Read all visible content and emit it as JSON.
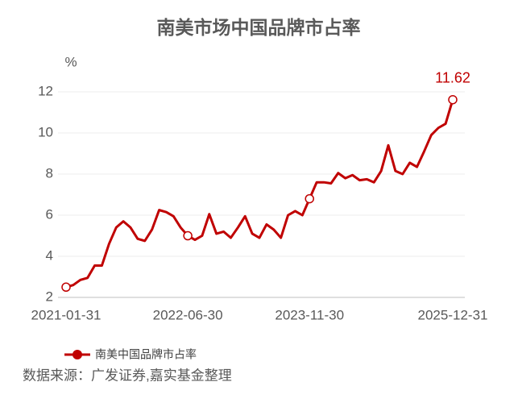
{
  "chart_data": {
    "type": "line",
    "title": "南美市场中国品牌市占率",
    "ylabel": "%",
    "source": "数据来源：广发证券,嘉实基金整理",
    "categories": [
      "2021-01-31",
      null,
      null,
      null,
      null,
      null,
      null,
      null,
      null,
      null,
      null,
      null,
      null,
      null,
      null,
      null,
      null,
      "2022-06-30",
      null,
      null,
      null,
      null,
      null,
      null,
      null,
      null,
      null,
      null,
      null,
      null,
      null,
      null,
      null,
      null,
      "2023-11-30",
      null,
      null,
      null,
      null,
      null,
      null,
      null,
      null,
      null,
      null,
      null,
      null,
      null,
      null,
      null,
      null,
      null,
      null,
      null,
      "2025-12-31"
    ],
    "series": [
      {
        "name": "南美中国品牌市占率",
        "color": "#c00000",
        "values": [
          2.5,
          2.6,
          2.85,
          2.95,
          3.55,
          3.55,
          4.6,
          5.4,
          5.7,
          5.4,
          4.85,
          4.75,
          5.3,
          6.25,
          6.15,
          5.95,
          5.4,
          5.0,
          4.8,
          5.0,
          6.05,
          5.1,
          5.2,
          4.9,
          5.4,
          5.95,
          5.1,
          4.9,
          5.55,
          5.3,
          4.9,
          6.0,
          6.2,
          6.0,
          6.8,
          7.6,
          7.6,
          7.55,
          8.05,
          7.8,
          7.95,
          7.7,
          7.75,
          7.6,
          8.15,
          9.4,
          8.15,
          8.0,
          8.55,
          8.35,
          9.1,
          9.9,
          10.25,
          10.45,
          11.62
        ]
      }
    ],
    "ylim": [
      2,
      12
    ],
    "yticks": [
      2,
      4,
      6,
      8,
      10,
      12
    ],
    "grid": true
  }
}
